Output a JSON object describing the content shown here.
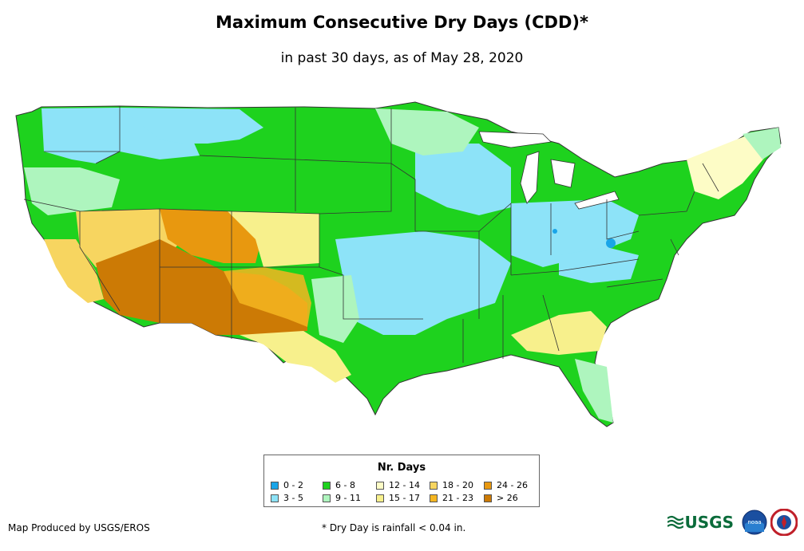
{
  "title": "Maximum Consecutive Dry Days (CDD)*",
  "subtitle": "in past 30 days, as of May 28, 2020",
  "legend": {
    "title": "Nr. Days",
    "items": [
      {
        "label": "0 - 2",
        "color": "#1aa5e8"
      },
      {
        "label": "3 - 5",
        "color": "#8de3f8"
      },
      {
        "label": "6 - 8",
        "color": "#1ed21e"
      },
      {
        "label": "9 - 11",
        "color": "#aef5be"
      },
      {
        "label": "12 - 14",
        "color": "#fdfcc6"
      },
      {
        "label": "15 - 17",
        "color": "#f7f08c"
      },
      {
        "label": "18 - 20",
        "color": "#f7d560"
      },
      {
        "label": "21 - 23",
        "color": "#f5b621"
      },
      {
        "label": "24 - 26",
        "color": "#e8980f"
      },
      {
        "label": "> 26",
        "color": "#cc7a05"
      }
    ]
  },
  "footer": {
    "credit": "Map Produced by USGS/EROS",
    "note": "* Dry Day is rainfall < 0.04 in."
  },
  "logos": {
    "usgs": "USGS",
    "noaa": "noaa",
    "nws_icon": "nws-seal-icon"
  }
}
